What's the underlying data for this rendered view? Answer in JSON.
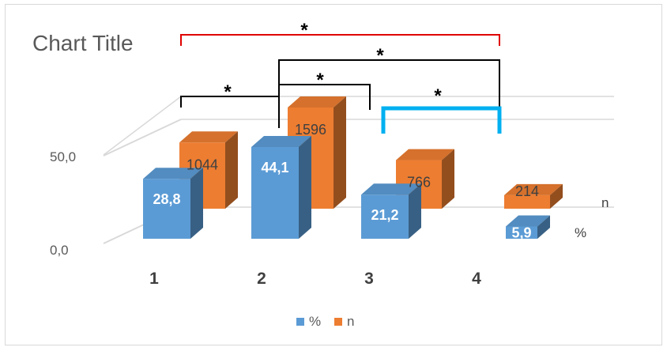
{
  "chart_data": {
    "type": "bar",
    "title": "Chart Title",
    "categories": [
      "1",
      "2",
      "3",
      "4"
    ],
    "series": [
      {
        "name": "%",
        "values": [
          28.8,
          44.1,
          21.2,
          5.9
        ],
        "labels": [
          "28,8",
          "44,1",
          "21,2",
          "5,9"
        ],
        "color": "#5b9bd5"
      },
      {
        "name": "n",
        "values": [
          1044,
          1596,
          766,
          214
        ],
        "labels": [
          "1044",
          "1596",
          "766",
          "214"
        ],
        "color": "#ed7d31"
      }
    ],
    "y_ticks": [
      "50,0",
      "0,0"
    ],
    "legend_position": "bottom",
    "three_d": true,
    "significance_brackets": [
      {
        "from": "1",
        "to": "4",
        "label": "*",
        "color": "#e00000"
      },
      {
        "from": "2",
        "to": "4",
        "label": "*",
        "color": "#000000"
      },
      {
        "from": "1",
        "to": "2",
        "label": "*",
        "color": "#000000"
      },
      {
        "from": "2",
        "to": "3",
        "label": "*",
        "color": "#000000"
      },
      {
        "from": "3",
        "to": "4",
        "label": "*",
        "color": "#00b0f0"
      }
    ]
  }
}
